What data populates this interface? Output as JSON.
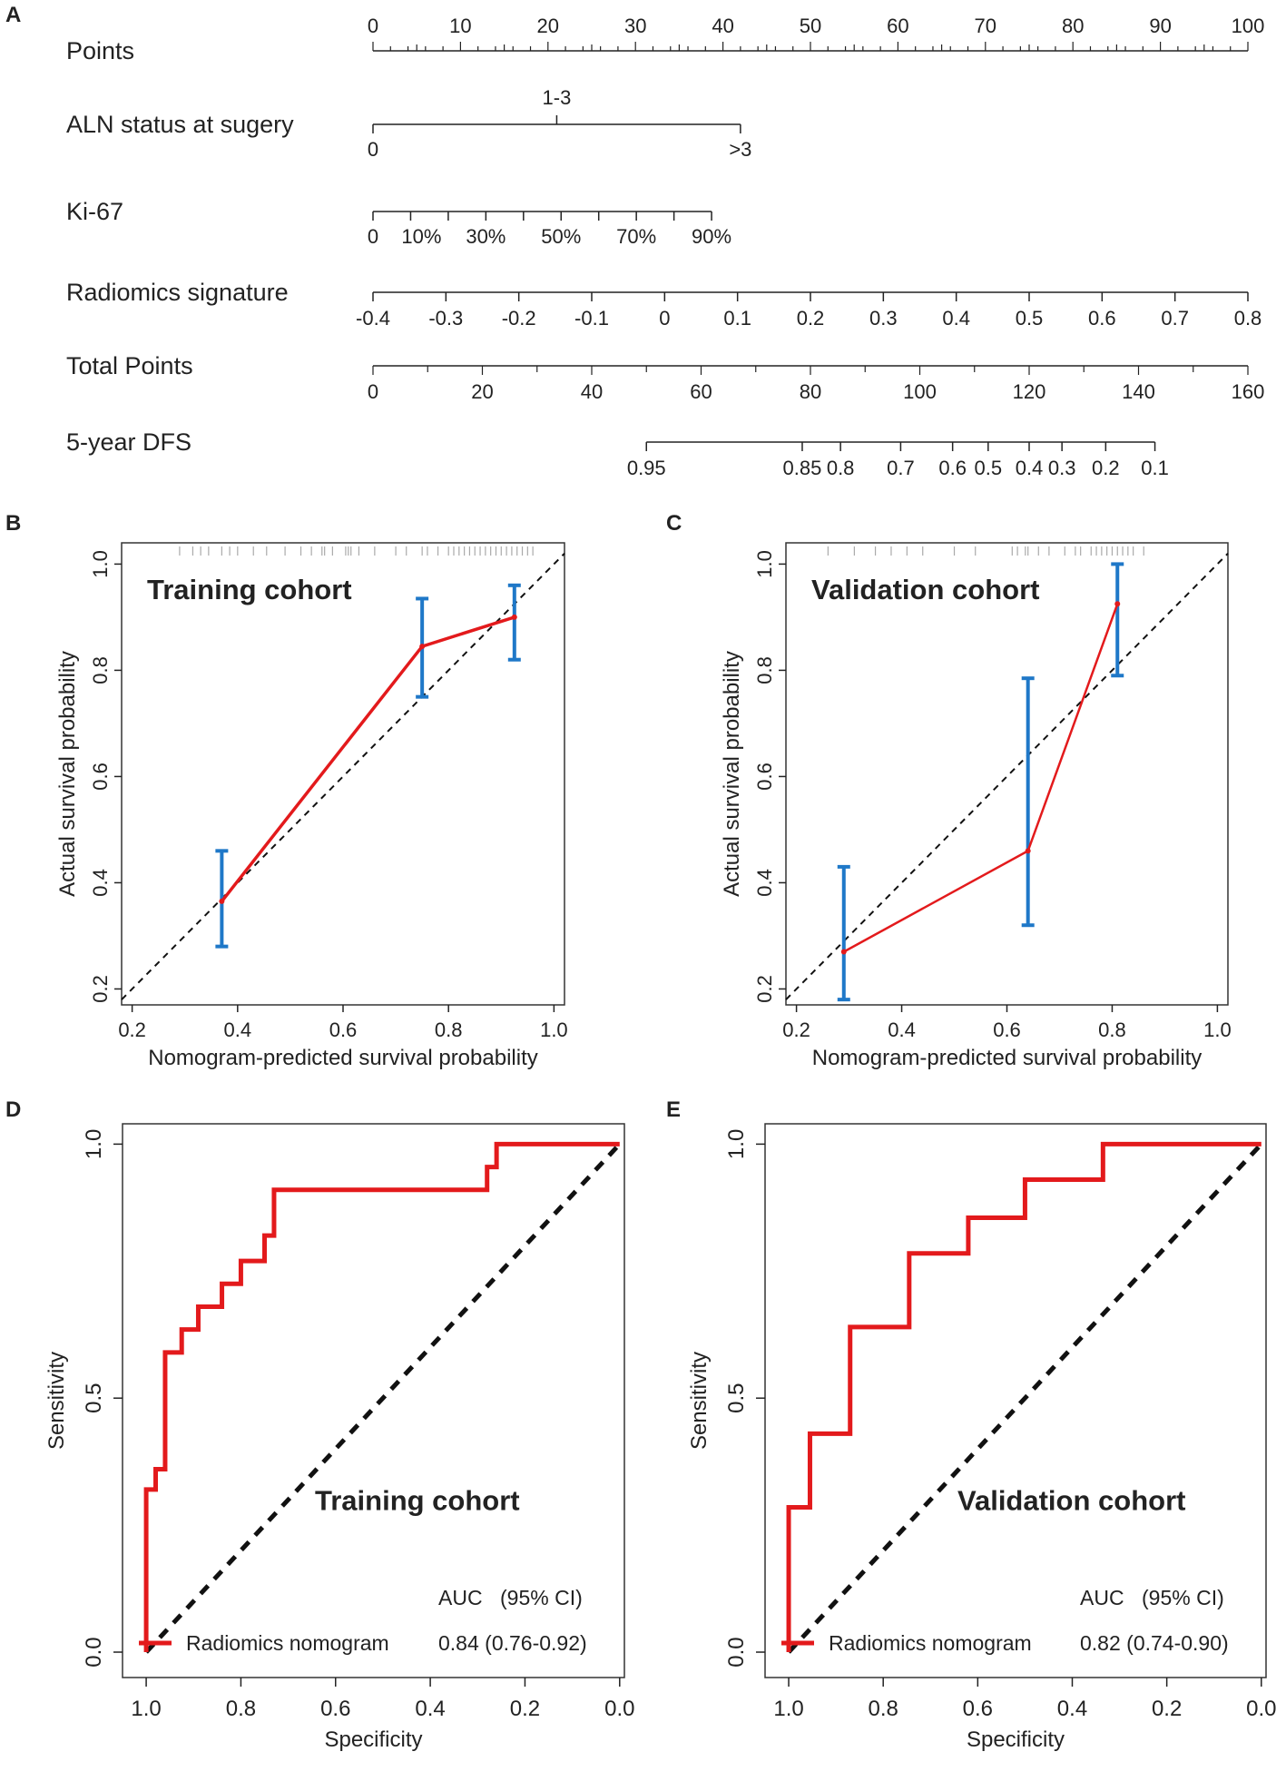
{
  "panels": {
    "A": "A",
    "B": "B",
    "C": "C",
    "D": "D",
    "E": "E"
  },
  "chart_data": [
    {
      "panel": "A",
      "type": "nomogram",
      "rows": [
        {
          "label": "Points",
          "ticks": [
            "0",
            "10",
            "20",
            "30",
            "40",
            "50",
            "60",
            "70",
            "80",
            "90",
            "100"
          ]
        },
        {
          "label": "ALN status at sugery",
          "ticks": [
            "0",
            "1-3",
            ">3"
          ]
        },
        {
          "label": "Ki-67",
          "ticks": [
            "0",
            "10%",
            "30%",
            "50%",
            "70%",
            "90%"
          ]
        },
        {
          "label": "Radiomics signature",
          "ticks": [
            "-0.4",
            "-0.3",
            "-0.2",
            "-0.1",
            "0",
            "0.1",
            "0.2",
            "0.3",
            "0.4",
            "0.5",
            "0.6",
            "0.7",
            "0.8"
          ]
        },
        {
          "label": "Total Points",
          "ticks": [
            "0",
            "20",
            "40",
            "60",
            "80",
            "100",
            "120",
            "140",
            "160"
          ]
        },
        {
          "label": "5-year DFS",
          "ticks": [
            "0.95",
            "0.85",
            "0.8",
            "0.7",
            "0.6",
            "0.5",
            "0.4",
            "0.3",
            "0.2",
            "0.1"
          ]
        }
      ],
      "aln_points": [
        0,
        21,
        42
      ],
      "ki67_values": [
        0,
        10,
        20,
        30,
        40,
        50,
        60,
        70,
        80,
        90
      ],
      "ki67_points": [
        0,
        4.3,
        8.6,
        12.9,
        17.2,
        21.5,
        25.8,
        30.1,
        34.4,
        38.7
      ],
      "radiomics_values": [
        -0.4,
        -0.3,
        -0.2,
        -0.1,
        0,
        0.1,
        0.2,
        0.3,
        0.4,
        0.5,
        0.6,
        0.7,
        0.8
      ],
      "dfs_values": [
        0.95,
        0.85,
        0.8,
        0.7,
        0.6,
        0.5,
        0.4,
        0.3,
        0.2,
        0.1
      ],
      "dfs_total_points": [
        50,
        78.5,
        85.5,
        96.5,
        106,
        112.5,
        120,
        126,
        134,
        143
      ]
    },
    {
      "panel": "B",
      "type": "line",
      "title": "Training cohort",
      "xlabel": "Nomogram-predicted survival probability",
      "ylabel": "Actual survival probability",
      "xlim": [
        0.18,
        1.02
      ],
      "ylim": [
        0.17,
        1.04
      ],
      "xticks": [
        "0.2",
        "0.4",
        "0.6",
        "0.8",
        "1.0"
      ],
      "yticks": [
        "0.2",
        "0.4",
        "0.6",
        "0.8",
        "1.0"
      ],
      "x": [
        0.37,
        0.75,
        0.925
      ],
      "y": [
        0.365,
        0.845,
        0.9
      ],
      "ci_low": [
        0.28,
        0.75,
        0.82
      ],
      "ci_high": [
        0.46,
        0.935,
        0.96
      ],
      "rug": [
        0.29,
        0.315,
        0.33,
        0.345,
        0.37,
        0.385,
        0.4,
        0.43,
        0.455,
        0.49,
        0.52,
        0.54,
        0.56,
        0.565,
        0.58,
        0.605,
        0.61,
        0.615,
        0.63,
        0.66,
        0.7,
        0.72,
        0.75,
        0.76,
        0.78,
        0.8,
        0.81,
        0.82,
        0.83,
        0.84,
        0.85,
        0.86,
        0.87,
        0.88,
        0.89,
        0.9,
        0.91,
        0.92,
        0.93,
        0.94,
        0.95,
        0.96
      ]
    },
    {
      "panel": "C",
      "type": "line",
      "title": "Validation cohort",
      "xlabel": "Nomogram-predicted survival probability",
      "ylabel": "Actual survival probability",
      "xlim": [
        0.18,
        1.02
      ],
      "ylim": [
        0.17,
        1.04
      ],
      "xticks": [
        "0.2",
        "0.4",
        "0.6",
        "0.8",
        "1.0"
      ],
      "yticks": [
        "0.2",
        "0.4",
        "0.6",
        "0.8",
        "1.0"
      ],
      "x": [
        0.29,
        0.64,
        0.81
      ],
      "y": [
        0.27,
        0.46,
        0.925
      ],
      "ci_low": [
        0.18,
        0.32,
        0.79
      ],
      "ci_high": [
        0.43,
        0.785,
        1.0
      ],
      "rug": [
        0.26,
        0.31,
        0.35,
        0.38,
        0.41,
        0.44,
        0.5,
        0.54,
        0.61,
        0.62,
        0.635,
        0.64,
        0.66,
        0.68,
        0.71,
        0.73,
        0.74,
        0.76,
        0.77,
        0.78,
        0.79,
        0.8,
        0.81,
        0.82,
        0.83,
        0.84,
        0.86
      ]
    },
    {
      "panel": "D",
      "type": "line",
      "title": "Training cohort",
      "xlabel": "Specificity",
      "ylabel": "Sensitivity",
      "xlim": [
        1.05,
        -0.01
      ],
      "ylim": [
        -0.05,
        1.04
      ],
      "xticks": [
        "1.0",
        "0.8",
        "0.6",
        "0.4",
        "0.2",
        "0.0"
      ],
      "yticks": [
        "0.0",
        "0.5",
        "1.0"
      ],
      "legend": {
        "header_auc": "AUC",
        "header_ci": "(95% CI)",
        "series_label": "Radiomics nomogram",
        "auc_value": "0.84 (0.76-0.92)"
      },
      "series": [
        {
          "name": "Radiomics nomogram",
          "specificity": [
            1.0,
            1.0,
            0.98,
            0.98,
            0.96,
            0.96,
            0.925,
            0.925,
            0.89,
            0.89,
            0.84,
            0.84,
            0.8,
            0.8,
            0.75,
            0.75,
            0.73,
            0.73,
            0.28,
            0.28,
            0.26,
            0.26,
            0.0
          ],
          "sensitivity": [
            0.0,
            0.32,
            0.32,
            0.36,
            0.36,
            0.59,
            0.59,
            0.635,
            0.635,
            0.68,
            0.68,
            0.725,
            0.725,
            0.77,
            0.77,
            0.82,
            0.82,
            0.91,
            0.91,
            0.955,
            0.955,
            1.0,
            1.0
          ]
        }
      ]
    },
    {
      "panel": "E",
      "type": "line",
      "title": "Validation cohort",
      "xlabel": "Specificity",
      "ylabel": "Sensitivity",
      "xlim": [
        1.05,
        -0.01
      ],
      "ylim": [
        -0.05,
        1.04
      ],
      "xticks": [
        "1.0",
        "0.8",
        "0.6",
        "0.4",
        "0.2",
        "0.0"
      ],
      "yticks": [
        "0.0",
        "0.5",
        "1.0"
      ],
      "legend": {
        "header_auc": "AUC",
        "header_ci": "(95% CI)",
        "series_label": "Radiomics nomogram",
        "auc_value": "0.82 (0.74-0.90)"
      },
      "series": [
        {
          "name": "Radiomics nomogram",
          "specificity": [
            1.0,
            1.0,
            0.955,
            0.955,
            0.87,
            0.87,
            0.745,
            0.745,
            0.62,
            0.62,
            0.5,
            0.5,
            0.335,
            0.335,
            0.0
          ],
          "sensitivity": [
            0.0,
            0.285,
            0.285,
            0.43,
            0.43,
            0.64,
            0.64,
            0.785,
            0.785,
            0.855,
            0.855,
            0.93,
            0.93,
            1.0,
            1.0
          ]
        }
      ]
    }
  ]
}
